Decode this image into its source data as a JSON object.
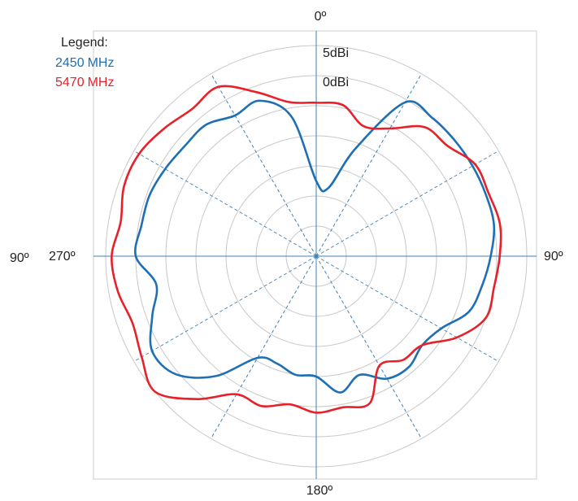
{
  "chart_data": {
    "type": "polar-line",
    "legend": {
      "title": "Legend:",
      "placement": "top-left"
    },
    "angle_labels": {
      "top": "0º",
      "bottom": "180º",
      "right": "90º",
      "left_outer": "90º",
      "left_inner": "270º"
    },
    "ring_labels": [
      "5dBi",
      "0dBi"
    ],
    "rings": 7,
    "spokes_deg": [
      0,
      30,
      60,
      90,
      120,
      150,
      180,
      210,
      240,
      270,
      300,
      330
    ],
    "colors": {
      "grid_ring": "#c8c8c8",
      "axis": "#3f82b2",
      "spoke_dash": "#3f82b2",
      "frame": "#cccccc"
    },
    "series": [
      {
        "name": "2450 MHz",
        "name_num": "2450",
        "name_unit": "MHz",
        "color": "#1f6fb5",
        "angles_deg": [
          0,
          10,
          20,
          30,
          40,
          50,
          60,
          70,
          80,
          90,
          100,
          110,
          120,
          130,
          140,
          150,
          160,
          170,
          180,
          190,
          200,
          210,
          220,
          230,
          240,
          250,
          260,
          270,
          280,
          290,
          300,
          310,
          320,
          330,
          340,
          350
        ],
        "r": [
          2.5,
          2.3,
          3.8,
          5.9,
          6.0,
          6.0,
          6.0,
          6.0,
          6.0,
          5.8,
          5.6,
          5.4,
          4.8,
          4.6,
          4.8,
          4.7,
          4.2,
          4.6,
          4.0,
          4.0,
          3.8,
          3.9,
          5.2,
          6.1,
          6.3,
          5.8,
          5.4,
          6.0,
          5.9,
          5.9,
          5.8,
          5.7,
          5.7,
          5.4,
          5.5,
          4.7
        ]
      },
      {
        "name": "5470 MHz",
        "name_num": "5470",
        "name_unit": "MHz",
        "color": "#e8202a",
        "angles_deg": [
          0,
          10,
          20,
          30,
          40,
          50,
          60,
          70,
          80,
          90,
          100,
          110,
          120,
          130,
          140,
          150,
          160,
          170,
          180,
          190,
          200,
          210,
          220,
          230,
          240,
          250,
          260,
          270,
          280,
          290,
          300,
          310,
          320,
          330,
          340,
          350
        ],
        "r": [
          5.1,
          5.1,
          4.6,
          4.9,
          5.6,
          5.7,
          6.1,
          6.1,
          6.2,
          6.1,
          6.0,
          6.0,
          5.4,
          4.6,
          4.5,
          4.2,
          5.2,
          5.1,
          5.2,
          5.0,
          5.3,
          5.3,
          6.2,
          7.0,
          6.7,
          6.5,
          6.7,
          6.8,
          6.6,
          6.8,
          6.8,
          6.6,
          6.4,
          6.5,
          5.8,
          5.2
        ]
      }
    ]
  }
}
